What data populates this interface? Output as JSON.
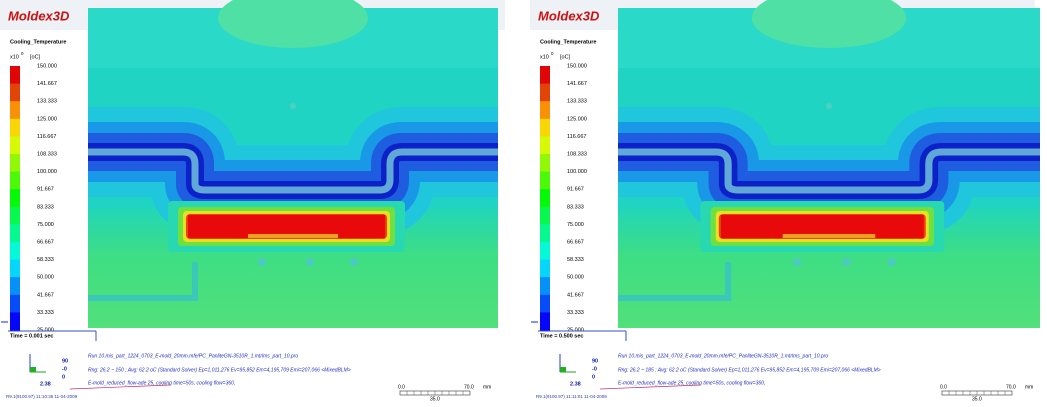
{
  "panels": [
    {
      "brand": "Moldex3D",
      "legend": {
        "title": "Cooling_Temperature",
        "unit_prefix": "x10",
        "unit_exponent": "0",
        "unit": "[oC]",
        "labels": [
          "150.000",
          "141.667",
          "133.333",
          "125.000",
          "116.667",
          "108.333",
          "100.000",
          "91.667",
          "83.333",
          "75.000",
          "66.667",
          "58.333",
          "50.000",
          "41.667",
          "33.333",
          "25.000"
        ]
      },
      "time": "Time = 0.001 sec",
      "triad": [
        "90",
        "-0",
        "0",
        "2.38"
      ],
      "info": [
        "Run 10.mis_part_1224_0703_E-mold_20mm.mfe/PC_PanliteGN-3510R_1.mtrlms_part_10.pro",
        "Rng: 26.2 ~ 150 ; Avg: 62.2 oC (Standard Solver) Ep=1,011,276 Ev=95,852 Em=4,195,709 Emi=207,066 <MixedBLM>",
        "E-mold_reduced_flow-ade 25, cooling time=50s, cooling flow=360,"
      ],
      "scale": {
        "start": "0.0",
        "end": "70.0",
        "unit": "mm",
        "mid": "35.0"
      },
      "footer": "R9.1(9100.97) 11:10:35 11-04-2009"
    },
    {
      "brand": "Moldex3D",
      "legend": {
        "title": "Cooling_Temperature",
        "unit_prefix": "x10",
        "unit_exponent": "0",
        "unit": "[oC]",
        "labels": [
          "150.000",
          "141.667",
          "133.333",
          "125.000",
          "116.667",
          "108.333",
          "100.000",
          "91.667",
          "83.333",
          "75.000",
          "66.667",
          "58.333",
          "50.000",
          "41.667",
          "33.333",
          "25.000"
        ]
      },
      "time": "Time = 0.500 sec",
      "triad": [
        "90",
        "-0",
        "0",
        "2.38"
      ],
      "info": [
        "Run 10.mis_part_1224_0703_E-mold_20mm.mfe/PC_PanliteGN-3510R_1.mtrlms_part_10.pro",
        "Rng: 26.2 ~ 185 ; Avg: 62.2 oC (Standard Solver) Ep=1,011,276 Ev=95,852 Em=4,195,709 Emi=207,066 <MixedBLM>",
        "E-mold_reduced_flow-ade 25, cooling time=50s, cooling flow=360,"
      ],
      "scale": {
        "start": "0.0",
        "end": "70.0",
        "unit": "mm",
        "mid": "35.0"
      },
      "footer": "R9.1(9100.97) 11:11:01 11-04-2009"
    }
  ]
}
